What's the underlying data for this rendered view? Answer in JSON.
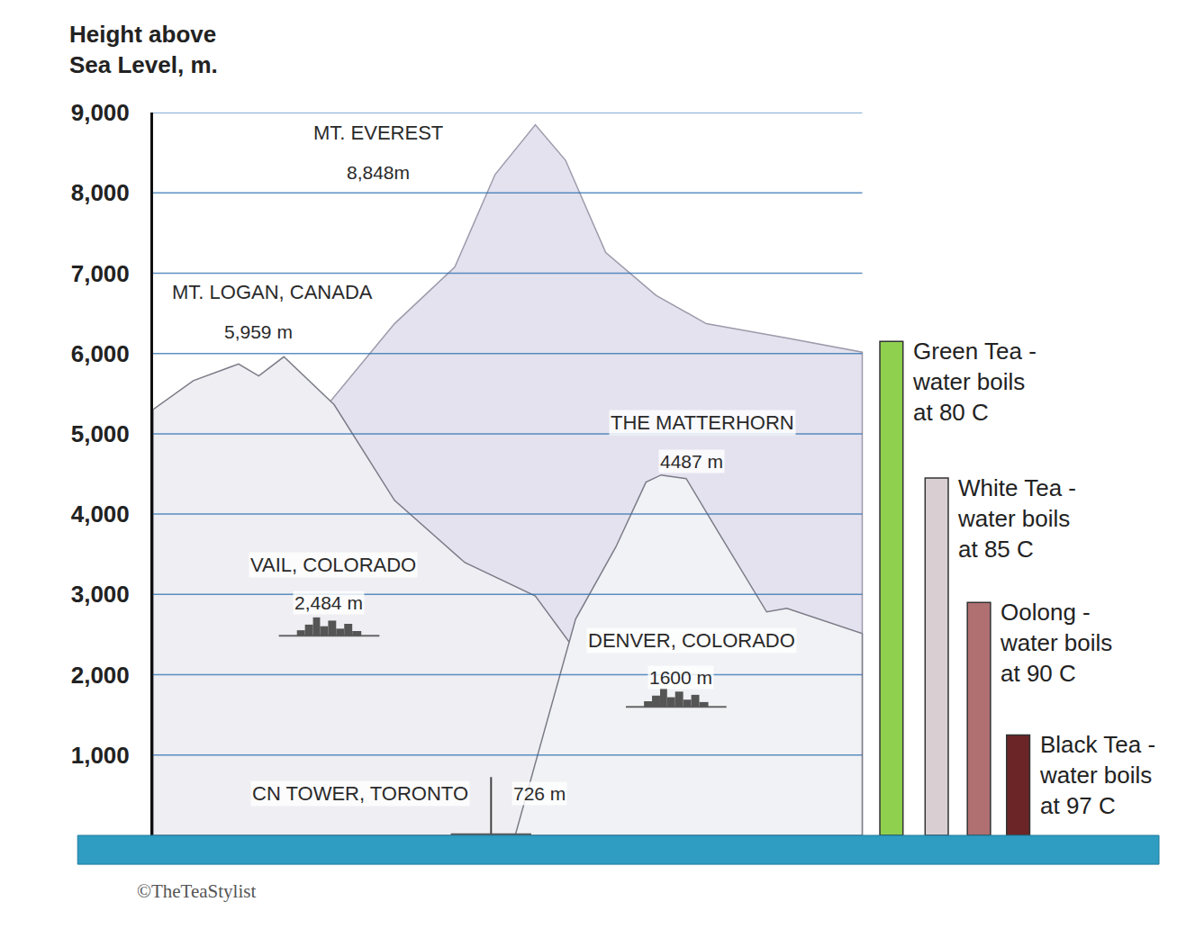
{
  "chart_data": {
    "type": "bar",
    "y_label": "Height above Sea Level, m.",
    "ylim": [
      0,
      9000
    ],
    "yticks": [
      {
        "value": 1000,
        "label": "1,000"
      },
      {
        "value": 2000,
        "label": "2,000"
      },
      {
        "value": 3000,
        "label": "3,000"
      },
      {
        "value": 4000,
        "label": "4,000"
      },
      {
        "value": 5000,
        "label": "5,000"
      },
      {
        "value": 6000,
        "label": "6,000"
      },
      {
        "value": 7000,
        "label": "7,000"
      },
      {
        "value": 8000,
        "label": "8,000"
      },
      {
        "value": 9000,
        "label": "9,000"
      }
    ],
    "grid": true,
    "tick_labels": "y",
    "series": [
      {
        "name": "MT. EVEREST",
        "type": "mountain",
        "values": [
          8848
        ],
        "value_labels": [
          "8,848m"
        ]
      },
      {
        "name": "MT. LOGAN, CANADA",
        "type": "mountain",
        "values": [
          5959
        ],
        "value_labels": [
          "5,959 m"
        ]
      },
      {
        "name": "THE MATTERHORN",
        "type": "mountain",
        "values": [
          4487
        ],
        "value_labels": [
          "4487 m"
        ]
      },
      {
        "name": "VAIL, COLORADO",
        "type": "city",
        "values": [
          2484
        ],
        "value_labels": [
          "2,484 m"
        ]
      },
      {
        "name": "DENVER, COLORADO",
        "type": "city",
        "values": [
          1600
        ],
        "value_labels": [
          "1600 m"
        ]
      },
      {
        "name": "CN TOWER, TORONTO",
        "type": "tower",
        "values": [
          726
        ],
        "value_labels": [
          "726 m"
        ]
      },
      {
        "name": "Green Tea - water boils at 80 C",
        "type": "bar",
        "color": "#8fd14f",
        "values": [
          6150
        ]
      },
      {
        "name": "White Tea - water boils at 85 C",
        "type": "bar",
        "color": "#d9cfd2",
        "values": [
          4450
        ]
      },
      {
        "name": "Oolong - water boils at 90 C",
        "type": "bar",
        "color": "#b07072",
        "values": [
          2900
        ]
      },
      {
        "name": "Black Tea - water boils at 97 C",
        "type": "bar",
        "color": "#6b2527",
        "values": [
          1250
        ]
      }
    ],
    "credit": "©TheTeaStylist"
  }
}
